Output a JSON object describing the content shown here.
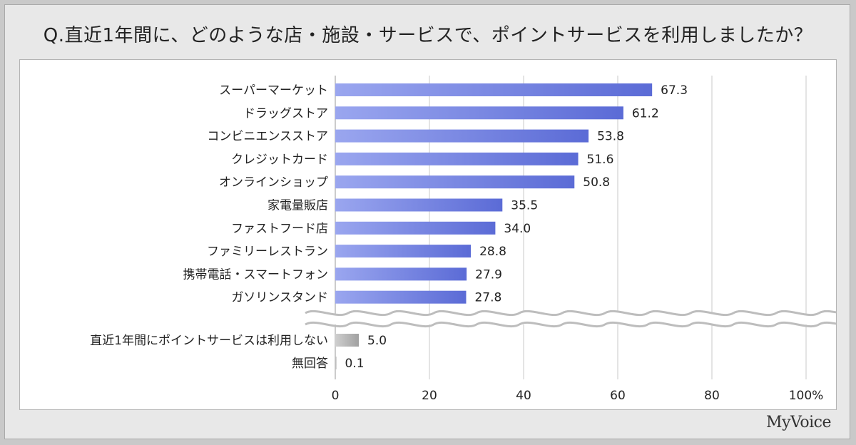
{
  "title": "Q.直近1年間に、どのような店・施設・サービスで、ポイントサービスを利用しましたか？",
  "logo": "MyVoice",
  "colors": {
    "bar": "#5b6bd6",
    "bar_light": "#9aa6ef",
    "bar_gray": "#a0a0a0",
    "grid": "#c8c8c8"
  },
  "chart_data": {
    "type": "bar",
    "orientation": "horizontal",
    "title": "Q.直近1年間に、どのような店・施設・サービスで、ポイントサービスを利用しましたか？",
    "xlim": [
      0,
      100
    ],
    "xticks": [
      "0",
      "20",
      "40",
      "60",
      "80",
      "100%"
    ],
    "grid": true,
    "categories": [
      "スーパーマーケット",
      "ドラッグストア",
      "コンビニエンスストア",
      "クレジットカード",
      "オンラインショップ",
      "家電量販店",
      "ファストフード店",
      "ファミリーレストラン",
      "携帯電話・スマートフォン",
      "ガソリンスタンド"
    ],
    "values": [
      67.3,
      61.2,
      53.8,
      51.6,
      50.8,
      35.5,
      34.0,
      28.8,
      27.9,
      27.8
    ],
    "labels": [
      "67.3",
      "61.2",
      "53.8",
      "51.6",
      "50.8",
      "35.5",
      "34.0",
      "28.8",
      "27.9",
      "27.8"
    ],
    "extra_categories": [
      "直近1年間にポイントサービスは利用しない",
      "無回答"
    ],
    "extra_values": [
      5.0,
      0.1
    ],
    "extra_labels": [
      "5.0",
      "0.1"
    ]
  }
}
